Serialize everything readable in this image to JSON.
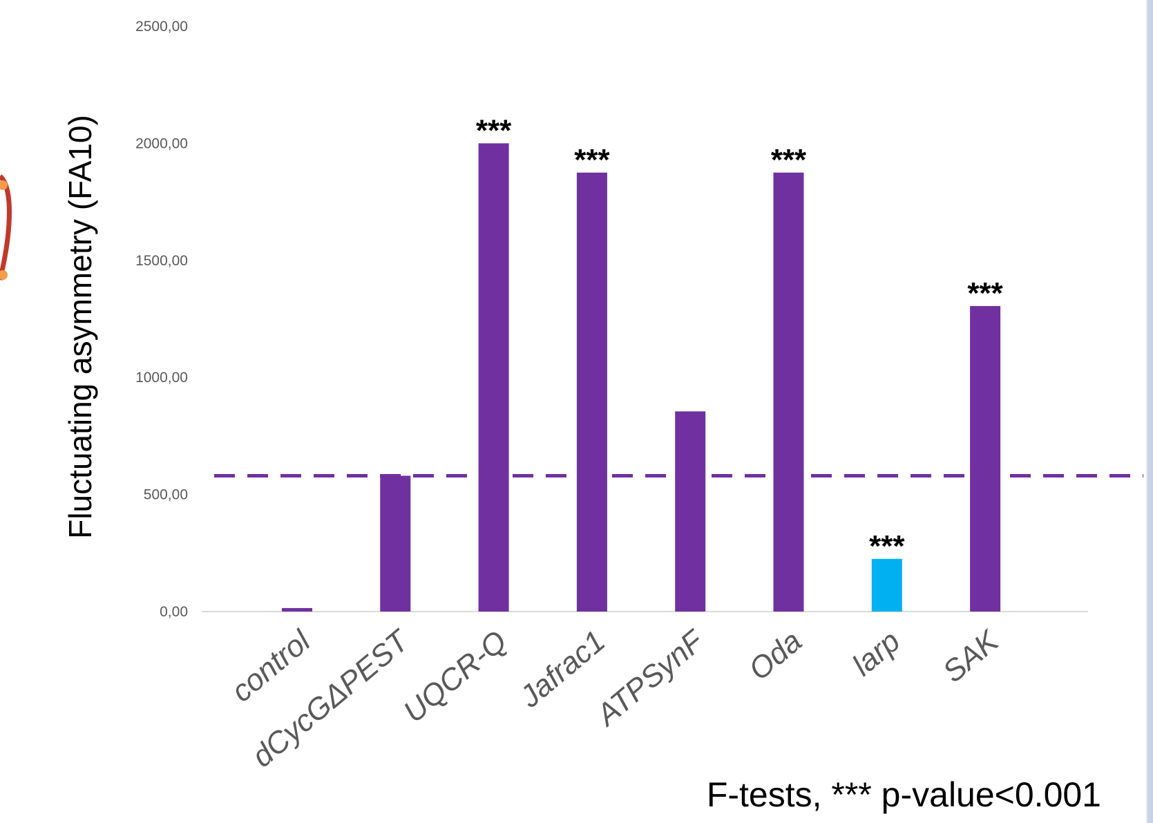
{
  "chart_data": {
    "type": "bar",
    "ylabel": "Fluctuating asymmetry (FA10)",
    "xlabel": "",
    "ylim": [
      0,
      2500
    ],
    "yticks": [
      0,
      500,
      1000,
      1500,
      2000,
      2500
    ],
    "ytick_labels": [
      "0,00",
      "500,00",
      "1000,00",
      "1500,00",
      "2000,00",
      "2500,00"
    ],
    "categories": [
      "control",
      "dCycGΔPEST",
      "UQCR-Q",
      "Jafrac1",
      "ATPSynF",
      "Oda",
      "larp",
      "SAK"
    ],
    "values": [
      15,
      580,
      2000,
      1875,
      855,
      1875,
      225,
      1305
    ],
    "significance": [
      "",
      "",
      "***",
      "***",
      "",
      "***",
      "***",
      "***"
    ],
    "bar_colors": [
      "#7030a0",
      "#7030a0",
      "#7030a0",
      "#7030a0",
      "#7030a0",
      "#7030a0",
      "#00b0f0",
      "#7030a0"
    ],
    "reference_line": {
      "value": 580,
      "style": "dashed",
      "color": "#7030a0"
    },
    "grid": false,
    "legend": "none"
  },
  "footnote": "F-tests, *** p-value<0.001",
  "colors": {
    "bar_default": "#7030a0",
    "bar_highlight": "#00b0f0",
    "axis": "#d9d9d9",
    "tick_text": "#595959"
  }
}
